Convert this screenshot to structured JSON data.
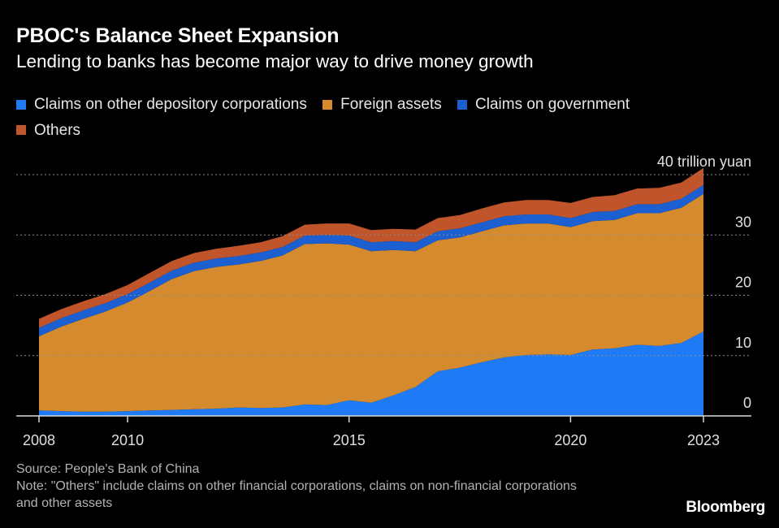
{
  "title": "PBOC's Balance Sheet Expansion",
  "subtitle": "Lending to banks has become major way to drive money growth",
  "legend": [
    {
      "label": "Claims on other depository corporations",
      "color": "#1f7bf5"
    },
    {
      "label": "Foreign assets",
      "color": "#d68a2e"
    },
    {
      "label": "Claims on government",
      "color": "#1c5fd1"
    },
    {
      "label": "Others",
      "color": "#c0552b"
    }
  ],
  "source": "Source: People's Bank of China",
  "note": "Note: \"Others\" include claims on other financial corporations, claims on non-financial corporations and other assets",
  "logo": "Bloomberg",
  "chart_data": {
    "type": "area",
    "stacked": true,
    "x": [
      2008.0,
      2008.5,
      2009.0,
      2009.5,
      2010.0,
      2010.5,
      2011.0,
      2011.5,
      2012.0,
      2012.5,
      2013.0,
      2013.5,
      2014.0,
      2014.5,
      2015.0,
      2015.5,
      2016.0,
      2016.5,
      2017.0,
      2017.5,
      2018.0,
      2018.5,
      2019.0,
      2019.5,
      2020.0,
      2020.5,
      2021.0,
      2021.5,
      2022.0,
      2022.5,
      2023.0
    ],
    "series": [
      {
        "name": "Claims on other depository corporations",
        "values": [
          0.9,
          0.8,
          0.7,
          0.7,
          0.8,
          0.9,
          1.0,
          1.1,
          1.2,
          1.4,
          1.3,
          1.4,
          1.9,
          1.8,
          2.6,
          2.2,
          3.4,
          4.8,
          7.4,
          8.0,
          8.9,
          9.7,
          10.1,
          10.2,
          10.1,
          11.0,
          11.2,
          11.8,
          11.6,
          12.1,
          14.0
        ]
      },
      {
        "name": "Foreign assets",
        "values": [
          12.3,
          14.0,
          15.4,
          16.6,
          18.0,
          19.8,
          21.7,
          22.9,
          23.5,
          23.7,
          24.4,
          25.2,
          26.6,
          26.8,
          25.8,
          25.1,
          24.1,
          22.5,
          21.7,
          21.6,
          21.7,
          21.9,
          21.8,
          21.7,
          21.2,
          21.3,
          21.3,
          21.8,
          22.0,
          22.4,
          22.8
        ]
      },
      {
        "name": "Claims on government",
        "values": [
          1.4,
          1.4,
          1.4,
          1.4,
          1.4,
          1.4,
          1.4,
          1.4,
          1.4,
          1.4,
          1.4,
          1.4,
          1.4,
          1.4,
          1.5,
          1.5,
          1.5,
          1.5,
          1.5,
          1.5,
          1.5,
          1.5,
          1.5,
          1.5,
          1.5,
          1.5,
          1.5,
          1.5,
          1.5,
          1.5,
          1.5
        ]
      },
      {
        "name": "Others",
        "values": [
          1.5,
          1.5,
          1.5,
          1.5,
          1.5,
          1.6,
          1.6,
          1.6,
          1.6,
          1.7,
          1.7,
          1.8,
          1.8,
          1.9,
          2.0,
          2.0,
          2.0,
          2.1,
          2.2,
          2.2,
          2.3,
          2.3,
          2.4,
          2.4,
          2.5,
          2.5,
          2.6,
          2.6,
          2.7,
          2.7,
          2.8
        ]
      }
    ],
    "xlim": [
      2008.0,
      2023.0
    ],
    "ylim": [
      0,
      40
    ],
    "y_ticks": [
      0,
      10,
      20,
      30,
      40
    ],
    "y_tick_labels": [
      "0",
      "10",
      "20",
      "30",
      "40 trillion yuan"
    ],
    "x_ticks": [
      2008,
      2010,
      2015,
      2020,
      2023
    ],
    "x_tick_labels": [
      "2008",
      "2010",
      "2015",
      "2020",
      "2023"
    ],
    "grid": true,
    "legend_position": "top-left"
  }
}
